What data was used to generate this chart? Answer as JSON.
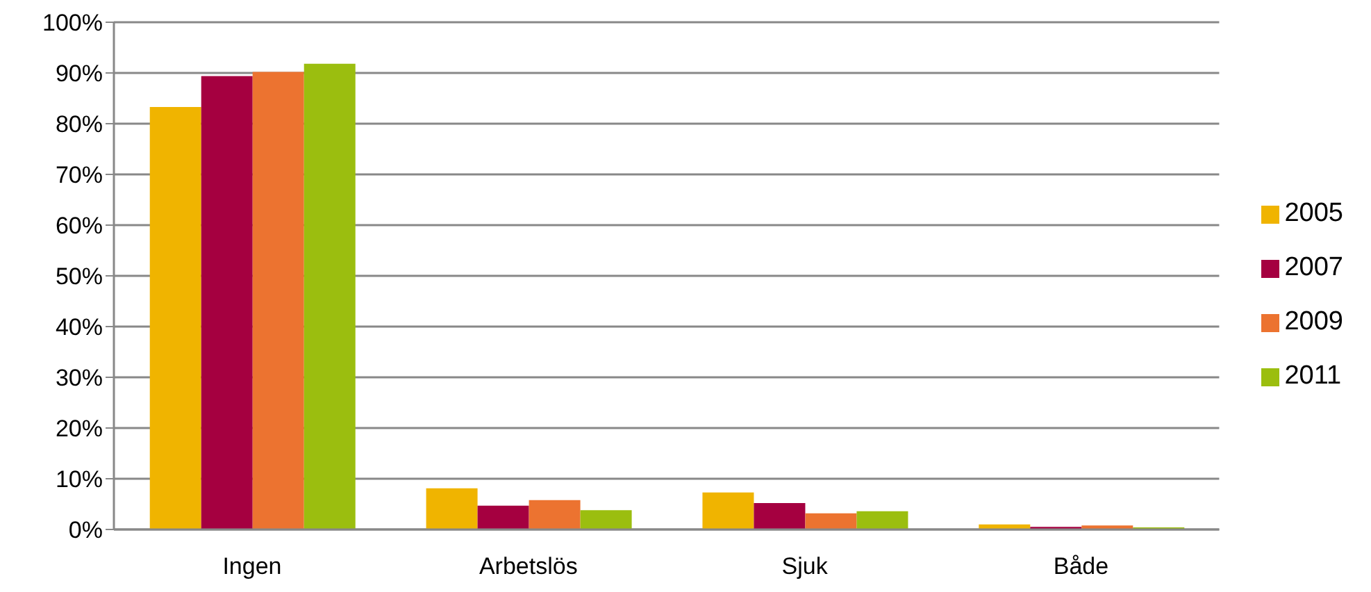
{
  "chart_data": {
    "type": "bar",
    "categories": [
      "Ingen",
      "Arbetslös",
      "Sjuk",
      "Både"
    ],
    "series": [
      {
        "name": "2005",
        "color": "#f0b400",
        "values": [
          83.3,
          8.1,
          7.3,
          1.0
        ]
      },
      {
        "name": "2007",
        "color": "#a50040",
        "values": [
          89.4,
          4.7,
          5.2,
          0.5
        ]
      },
      {
        "name": "2009",
        "color": "#ec7330",
        "values": [
          90.2,
          5.8,
          3.2,
          0.8
        ]
      },
      {
        "name": "2011",
        "color": "#9bbe0f",
        "values": [
          91.8,
          3.8,
          3.6,
          0.4
        ]
      }
    ],
    "ylim": [
      0,
      100
    ],
    "yticks": [
      {
        "value": 0,
        "label": "0%"
      },
      {
        "value": 10,
        "label": "10%"
      },
      {
        "value": 20,
        "label": "20%"
      },
      {
        "value": 30,
        "label": "30%"
      },
      {
        "value": 40,
        "label": "40%"
      },
      {
        "value": 50,
        "label": "50%"
      },
      {
        "value": 60,
        "label": "60%"
      },
      {
        "value": 70,
        "label": "70%"
      },
      {
        "value": 80,
        "label": "80%"
      },
      {
        "value": 90,
        "label": "90%"
      },
      {
        "value": 100,
        "label": "100%"
      }
    ],
    "grid": "y",
    "legend": "right"
  }
}
